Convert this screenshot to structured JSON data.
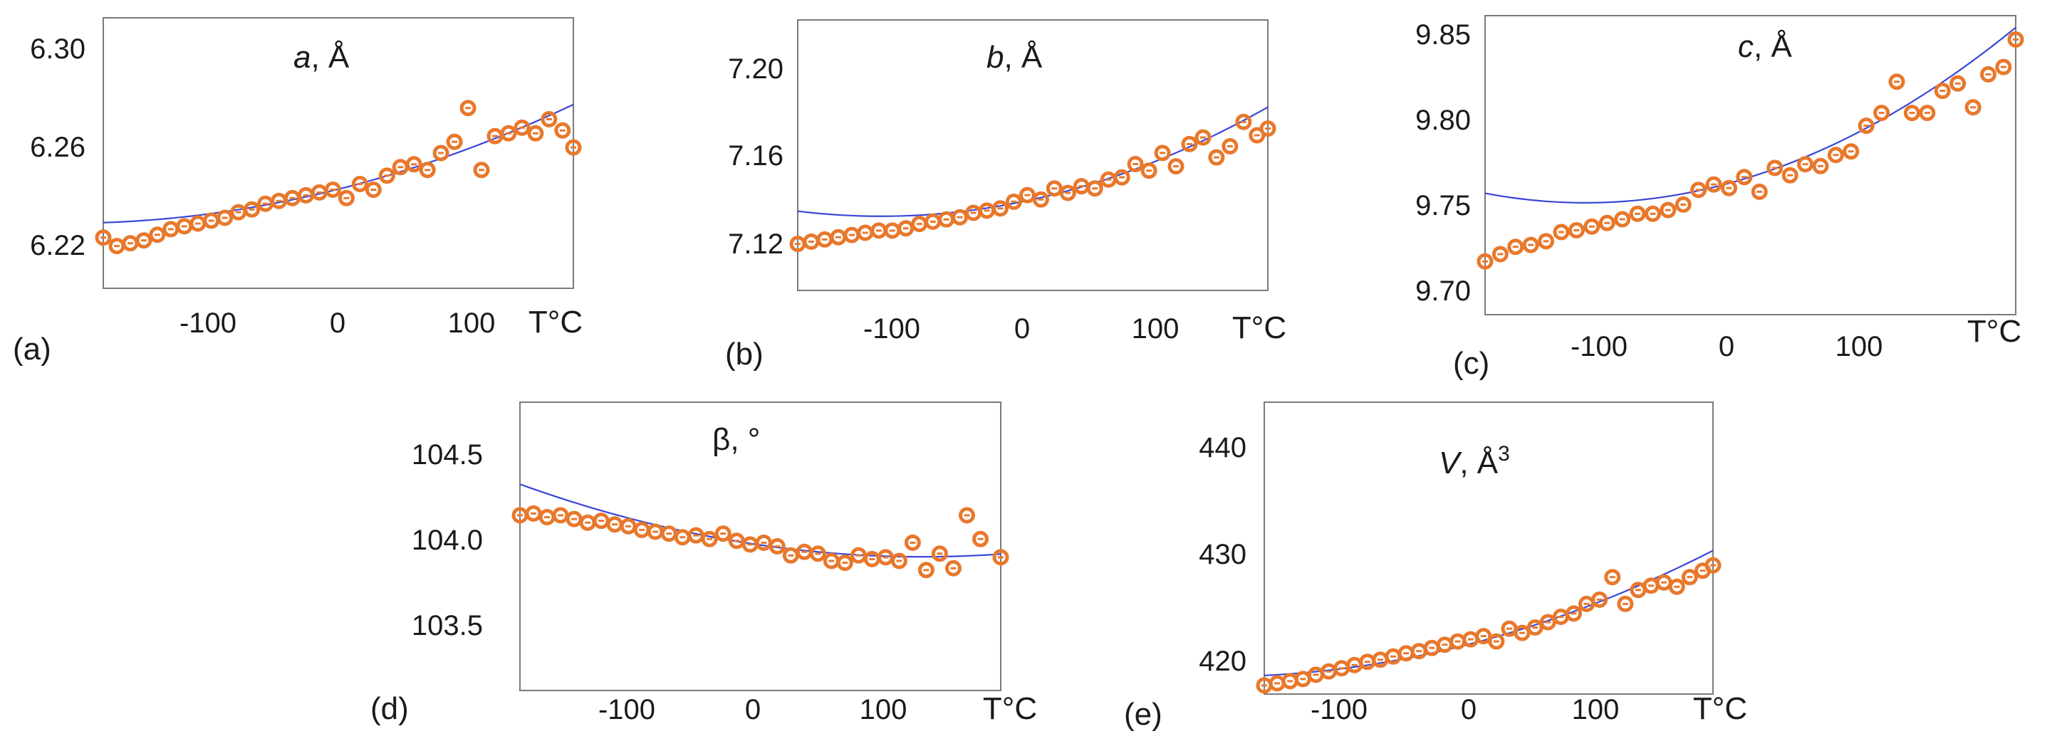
{
  "figure": {
    "colors": {
      "marker": "#e8782c",
      "fit_line": "#3a46d8",
      "axis": "#7a7a7a",
      "text": "#1a1a1a"
    }
  },
  "chart_data": [
    {
      "type": "scatter",
      "panel": "(a)",
      "title": {
        "symbol": "a",
        "suffix": ", Å"
      },
      "xlabel": "T°C",
      "ylabel": "",
      "xlim": [
        -170,
        178
      ],
      "ylim": [
        6.21,
        6.306
      ],
      "xticks": [
        -100,
        0,
        100
      ],
      "xtick_labels": [
        "-100",
        "0",
        "100"
      ],
      "yticks": [
        6.22,
        6.26,
        6.3
      ],
      "ytick_labels": [
        "6.22",
        "6.26",
        "6.30"
      ],
      "fit": {
        "x": [
          -170,
          178
        ],
        "coef": [
          6.2447,
          0.000118,
          3e-07
        ]
      },
      "x": [
        -170,
        -160,
        -150,
        -140,
        -130,
        -120,
        -110,
        -100,
        -90,
        -80,
        -70,
        -60,
        -50,
        -40,
        -30,
        -20,
        -10,
        0,
        10,
        20,
        30,
        40,
        50,
        60,
        70,
        80,
        90,
        100,
        110,
        120,
        130,
        140,
        150,
        160,
        170,
        178
      ],
      "y": [
        6.228,
        6.225,
        6.226,
        6.227,
        6.229,
        6.231,
        6.232,
        6.233,
        6.234,
        6.235,
        6.237,
        6.238,
        6.24,
        6.241,
        6.242,
        6.243,
        6.244,
        6.245,
        6.242,
        6.247,
        6.245,
        6.25,
        6.253,
        6.254,
        6.252,
        6.258,
        6.262,
        6.274,
        6.252,
        6.264,
        6.265,
        6.267,
        6.265,
        6.27,
        6.266,
        6.26
      ]
    },
    {
      "type": "scatter",
      "panel": "(b)",
      "title": {
        "symbol": "b",
        "suffix": ", Å"
      },
      "xlabel": "T°C",
      "ylabel": "",
      "xlim": [
        -170,
        178
      ],
      "ylim": [
        7.106,
        7.228
      ],
      "xticks": [
        -100,
        0,
        100
      ],
      "xtick_labels": [
        "-100",
        "0",
        "100"
      ],
      "yticks": [
        7.12,
        7.16,
        7.2
      ],
      "ytick_labels": [
        "7.12",
        "7.16",
        "7.20"
      ],
      "fit": {
        "x": [
          -170,
          178
        ],
        "coef": [
          7.1465,
          0.00013,
          6e-07
        ]
      },
      "x": [
        -170,
        -160,
        -150,
        -140,
        -130,
        -120,
        -110,
        -100,
        -90,
        -80,
        -70,
        -60,
        -50,
        -40,
        -30,
        -20,
        -10,
        0,
        10,
        20,
        30,
        40,
        50,
        60,
        70,
        80,
        90,
        100,
        110,
        120,
        130,
        140,
        150,
        160,
        170,
        178
      ],
      "y": [
        7.127,
        7.128,
        7.129,
        7.13,
        7.131,
        7.132,
        7.133,
        7.133,
        7.134,
        7.136,
        7.137,
        7.138,
        7.139,
        7.141,
        7.142,
        7.143,
        7.146,
        7.149,
        7.147,
        7.152,
        7.15,
        7.153,
        7.152,
        7.156,
        7.157,
        7.163,
        7.16,
        7.168,
        7.162,
        7.172,
        7.175,
        7.166,
        7.171,
        7.182,
        7.176,
        7.179
      ]
    },
    {
      "type": "scatter",
      "panel": "(c)",
      "title": {
        "symbol": "c",
        "suffix": ", Å"
      },
      "xlabel": "T°C",
      "ylabel": "",
      "xlim": [
        -170,
        178
      ],
      "ylim": [
        9.693,
        9.856
      ],
      "xticks": [
        -100,
        0,
        100
      ],
      "xtick_labels": [
        "-100",
        "0",
        "100"
      ],
      "yticks": [
        9.7,
        9.75,
        9.8,
        9.85
      ],
      "ytick_labels": [
        "9.70",
        "9.75",
        "9.80",
        "9.85"
      ],
      "fit": {
        "x": [
          -170,
          178
        ],
        "coef": [
          9.767,
          0.00025,
          1.2e-06
        ]
      },
      "x": [
        -170,
        -160,
        -150,
        -140,
        -130,
        -120,
        -110,
        -100,
        -90,
        -80,
        -70,
        -60,
        -50,
        -40,
        -30,
        -20,
        -10,
        0,
        10,
        20,
        30,
        40,
        50,
        60,
        70,
        80,
        90,
        100,
        110,
        120,
        130,
        140,
        150,
        160,
        170,
        178
      ],
      "y": [
        9.722,
        9.726,
        9.73,
        9.731,
        9.733,
        9.738,
        9.739,
        9.741,
        9.743,
        9.745,
        9.748,
        9.748,
        9.75,
        9.753,
        9.761,
        9.764,
        9.762,
        9.768,
        9.76,
        9.773,
        9.769,
        9.775,
        9.774,
        9.78,
        9.782,
        9.796,
        9.803,
        9.82,
        9.803,
        9.803,
        9.815,
        9.819,
        9.806,
        9.824,
        9.828,
        9.843
      ]
    },
    {
      "type": "scatter",
      "panel": "(d)",
      "title": {
        "symbol": "β",
        "suffix": ", °"
      },
      "xlabel": "T°C",
      "ylabel": "",
      "xlim": [
        -175,
        180
      ],
      "ylim": [
        103.22,
        104.8
      ],
      "xticks": [
        -100,
        0,
        100
      ],
      "xtick_labels": [
        "-100",
        "0",
        "100"
      ],
      "yticks": [
        103.5,
        104.0,
        104.5
      ],
      "ytick_labels": [
        "103.5",
        "104.0",
        "104.5"
      ],
      "fit": {
        "x": [
          -175,
          180
        ],
        "coef": [
          104.02,
          -0.0011,
          4.5e-06
        ]
      },
      "x": [
        -175,
        -165,
        -155,
        -145,
        -135,
        -125,
        -115,
        -105,
        -95,
        -85,
        -75,
        -65,
        -55,
        -45,
        -35,
        -25,
        -15,
        -5,
        5,
        15,
        25,
        35,
        45,
        55,
        65,
        75,
        85,
        95,
        105,
        115,
        125,
        135,
        145,
        155,
        165,
        180
      ],
      "y": [
        104.18,
        104.19,
        104.17,
        104.18,
        104.16,
        104.14,
        104.15,
        104.13,
        104.12,
        104.1,
        104.09,
        104.08,
        104.06,
        104.07,
        104.05,
        104.08,
        104.04,
        104.02,
        104.03,
        104.01,
        103.96,
        103.98,
        103.97,
        103.93,
        103.92,
        103.96,
        103.94,
        103.95,
        103.93,
        104.03,
        103.88,
        103.97,
        103.89,
        104.18,
        104.05,
        103.95
      ]
    },
    {
      "type": "scatter",
      "panel": "(e)",
      "title": {
        "symbol": "V",
        "suffix": ", Å",
        "superscript": "3"
      },
      "xlabel": "T°C",
      "ylabel": "",
      "xlim": [
        -170,
        178
      ],
      "ylim": [
        417.8,
        445
      ],
      "xticks": [
        -100,
        0,
        100
      ],
      "xtick_labels": [
        "-100",
        "0",
        "100"
      ],
      "yticks": [
        420,
        430,
        440
      ],
      "ytick_labels": [
        "420",
        "430",
        "440"
      ],
      "fit": {
        "x": [
          -170,
          178
        ],
        "coef": [
          422.8,
          0.0328,
          8e-05
        ]
      },
      "x": [
        -170,
        -160,
        -150,
        -140,
        -130,
        -120,
        -110,
        -100,
        -90,
        -80,
        -70,
        -60,
        -50,
        -40,
        -30,
        -20,
        -10,
        0,
        10,
        20,
        30,
        40,
        50,
        60,
        70,
        80,
        90,
        100,
        110,
        120,
        130,
        140,
        150,
        160,
        170,
        178
      ],
      "y": [
        418.6,
        418.8,
        419.0,
        419.2,
        419.6,
        419.9,
        420.2,
        420.5,
        420.8,
        421.0,
        421.3,
        421.6,
        421.8,
        422.1,
        422.4,
        422.7,
        422.9,
        423.2,
        422.7,
        423.9,
        423.5,
        424.0,
        424.5,
        425.0,
        425.3,
        426.2,
        426.6,
        428.7,
        426.2,
        427.5,
        427.9,
        428.2,
        427.8,
        428.7,
        429.3,
        429.8
      ]
    }
  ]
}
